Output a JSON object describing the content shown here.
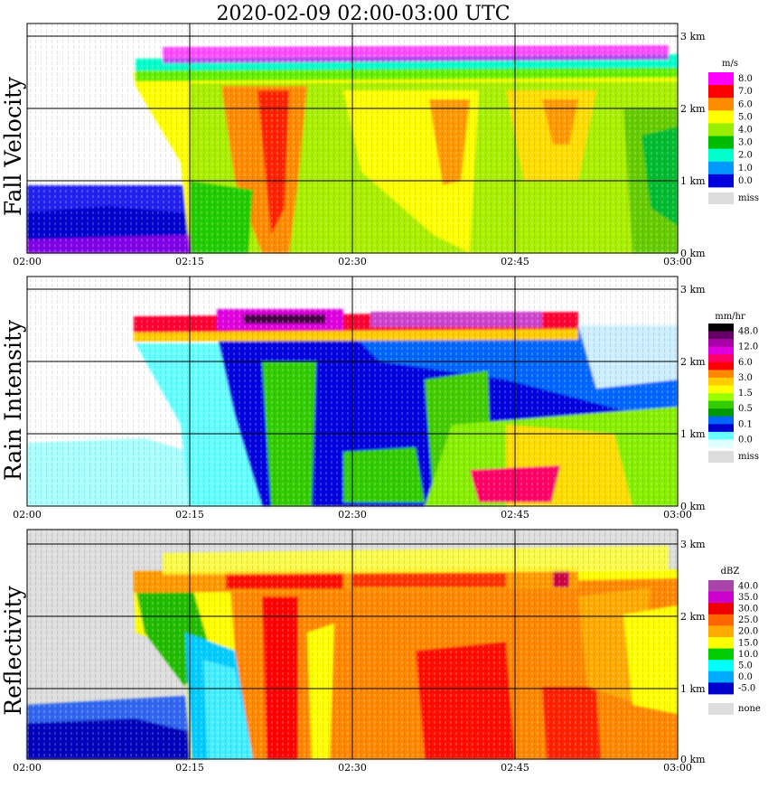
{
  "title": "2020-02-09   02:00-03:00 UTC",
  "x_ticks": [
    "02:00",
    "02:15",
    "02:30",
    "02:45",
    "03:00"
  ],
  "y_ticks": [
    "0 km",
    "1 km",
    "2 km",
    "3 km"
  ],
  "panels": [
    {
      "ylabel": "Fall Velocity",
      "unit": "m/s",
      "legend": [
        "8.0",
        "7.0",
        "6.0",
        "5.0",
        "4.0",
        "3.0",
        "2.0",
        "1.0",
        "0.0"
      ],
      "legend_colors": [
        "#ff00ff",
        "#ff0000",
        "#ff8c00",
        "#ffff00",
        "#99ee00",
        "#00bb00",
        "#00ffcc",
        "#0099ff",
        "#0000dd"
      ],
      "missing_label": "miss",
      "missing_color": "#dddddd"
    },
    {
      "ylabel": "Rain Intensity",
      "unit": "mm/hr",
      "legend": [
        "48.0",
        "12.0",
        "6.0",
        "3.0",
        "1.5",
        "0.5",
        "0.1",
        "0.0"
      ],
      "legend_colors": [
        "#000000",
        "#660066",
        "#aa00aa",
        "#dd00dd",
        "#ff0066",
        "#ff0000",
        "#ff8800",
        "#ffcc00",
        "#ffff00",
        "#99ff00",
        "#33cc00",
        "#009900",
        "#0066ff",
        "#0000cc",
        "#66ffff",
        "#e0ffff"
      ],
      "missing_label": "miss",
      "missing_color": "#dddddd"
    },
    {
      "ylabel": "Reflectivity",
      "unit": "dBZ",
      "legend": [
        "40.0",
        "35.0",
        "30.0",
        "25.0",
        "20.0",
        "15.0",
        "10.0",
        "5.0",
        "0.0",
        "-5.0"
      ],
      "legend_colors": [
        "#aa44aa",
        "#cc00cc",
        "#ee0000",
        "#ff6600",
        "#ffaa00",
        "#ffff00",
        "#00cc00",
        "#00ffff",
        "#00aaff",
        "#0000cc"
      ],
      "missing_label": "none",
      "missing_color": "#dddddd"
    }
  ],
  "chart_data": [
    {
      "type": "heatmap",
      "title": "2020-02-09   02:00-03:00 UTC",
      "ylabel": "Fall Velocity",
      "colorbar_unit": "m/s",
      "x_range": [
        "02:00",
        "03:00"
      ],
      "y_range_km": [
        0,
        3.3
      ],
      "x_ticks": [
        "02:00",
        "02:15",
        "02:30",
        "02:45",
        "03:00"
      ],
      "y_ticks_km": [
        0,
        1,
        2,
        3
      ],
      "colorbar_levels": [
        0.0,
        1.0,
        2.0,
        3.0,
        4.0,
        5.0,
        6.0,
        7.0,
        8.0
      ],
      "grid": true
    },
    {
      "type": "heatmap",
      "ylabel": "Rain Intensity",
      "colorbar_unit": "mm/hr",
      "x_range": [
        "02:00",
        "03:00"
      ],
      "y_range_km": [
        0,
        3.3
      ],
      "x_ticks": [
        "02:00",
        "02:15",
        "02:30",
        "02:45",
        "03:00"
      ],
      "y_ticks_km": [
        0,
        1,
        2,
        3
      ],
      "colorbar_levels": [
        0.0,
        0.1,
        0.5,
        1.5,
        3.0,
        6.0,
        12.0,
        48.0
      ],
      "grid": true
    },
    {
      "type": "heatmap",
      "ylabel": "Reflectivity",
      "colorbar_unit": "dBZ",
      "x_range": [
        "02:00",
        "03:00"
      ],
      "y_range_km": [
        0,
        3.3
      ],
      "x_ticks": [
        "02:00",
        "02:15",
        "02:30",
        "02:45",
        "03:00"
      ],
      "y_ticks_km": [
        0,
        1,
        2,
        3
      ],
      "colorbar_levels": [
        -5.0,
        0.0,
        5.0,
        10.0,
        15.0,
        20.0,
        25.0,
        30.0,
        35.0,
        40.0
      ],
      "grid": true
    }
  ]
}
